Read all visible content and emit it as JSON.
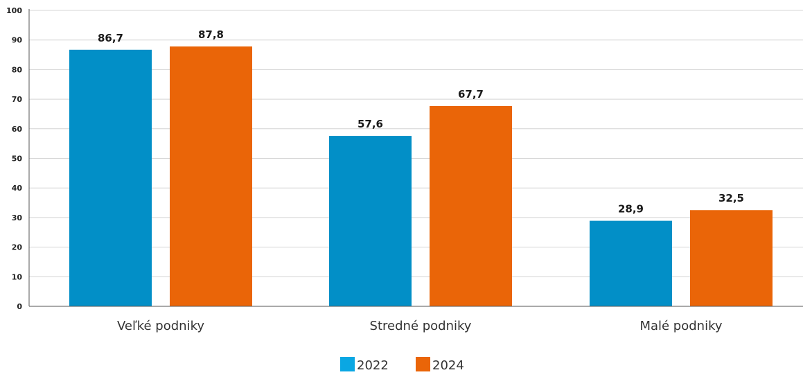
{
  "chart_data": {
    "type": "bar",
    "categories": [
      "Veľké podniky",
      "Stredné podniky",
      "Malé podniky"
    ],
    "series": [
      {
        "name": "2022",
        "values": [
          86.7,
          57.6,
          28.9
        ],
        "labels": [
          "86,7",
          "57,6",
          "28,9"
        ],
        "color": "#028fc7"
      },
      {
        "name": "2024",
        "values": [
          87.8,
          67.7,
          32.5
        ],
        "labels": [
          "87,8",
          "67,7",
          "32,5"
        ],
        "color": "#ea6508"
      }
    ],
    "ylim": [
      0,
      100
    ],
    "yticks": [
      0,
      10,
      20,
      30,
      40,
      50,
      60,
      70,
      80,
      90,
      100
    ],
    "grid": true,
    "legend_position": "bottom-center",
    "title": "",
    "xlabel": "",
    "ylabel": ""
  }
}
